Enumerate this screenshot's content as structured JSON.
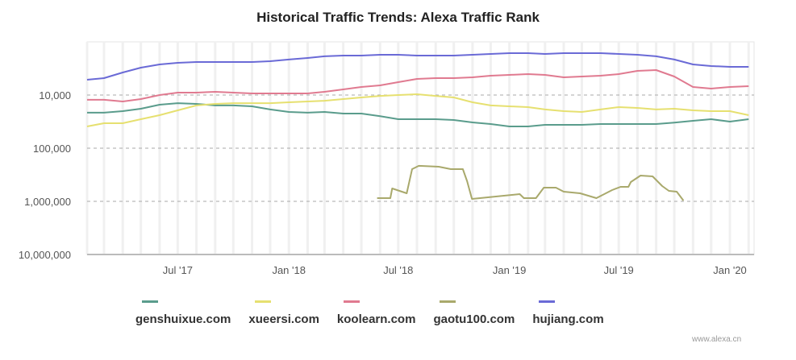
{
  "chart_data": {
    "type": "line",
    "title": "Historical Traffic Trends: Alexa Traffic Rank",
    "xlabel": "",
    "ylabel": "",
    "y_scale": "log",
    "y_reversed": true,
    "ylim": [
      1000,
      10000000
    ],
    "xlim": [
      "2017-02-01",
      "2020-02-10"
    ],
    "grid": "horizontal dashed, vertical faint",
    "legend_position": "bottom",
    "y_ticks": [
      "10,000",
      "100,000",
      "1,000,000",
      "10,000,000"
    ],
    "y_tick_values": [
      10000,
      100000,
      1000000,
      10000000
    ],
    "x_ticks": [
      "Jul '17",
      "Jan '18",
      "Jul '18",
      "Jan '19",
      "Jul '19",
      "Jan '20"
    ],
    "x_tick_dates": [
      "2017-07-01",
      "2018-01-01",
      "2018-07-01",
      "2019-01-01",
      "2019-07-01",
      "2020-01-01"
    ],
    "dates": [
      "2017-02-01",
      "2017-03-01",
      "2017-04-01",
      "2017-05-01",
      "2017-06-01",
      "2017-07-01",
      "2017-08-01",
      "2017-09-01",
      "2017-10-01",
      "2017-11-01",
      "2017-12-01",
      "2018-01-01",
      "2018-02-01",
      "2018-03-01",
      "2018-04-01",
      "2018-05-01",
      "2018-06-01",
      "2018-07-01",
      "2018-08-01",
      "2018-09-01",
      "2018-10-01",
      "2018-11-01",
      "2018-12-01",
      "2019-01-01",
      "2019-02-01",
      "2019-03-01",
      "2019-04-01",
      "2019-05-01",
      "2019-06-01",
      "2019-07-01",
      "2019-08-01",
      "2019-09-01",
      "2019-10-01",
      "2019-11-01",
      "2019-12-01",
      "2020-01-01",
      "2020-02-01"
    ],
    "series": [
      {
        "name": "genshuixue.com",
        "color": "#5a9c8c",
        "values": [
          21500,
          21500,
          20100,
          18100,
          15200,
          14200,
          14700,
          15700,
          15700,
          16300,
          18700,
          20800,
          21500,
          20800,
          22300,
          22300,
          25000,
          28500,
          28500,
          28500,
          29500,
          32700,
          35100,
          39000,
          39000,
          36400,
          36400,
          36400,
          35100,
          35100,
          35100,
          35100,
          33000,
          30500,
          28500,
          31600,
          28500
        ]
      },
      {
        "name": "xueersi.com",
        "color": "#e6e070",
        "values": [
          39000,
          33900,
          33900,
          28500,
          23900,
          19400,
          15700,
          14700,
          14200,
          14200,
          14200,
          13700,
          13200,
          12800,
          11900,
          11100,
          10400,
          10000,
          9660,
          10400,
          11100,
          13700,
          15700,
          16300,
          16900,
          18700,
          20100,
          20800,
          18700,
          16900,
          17500,
          18700,
          18100,
          19400,
          20100,
          20100,
          23900
        ]
      },
      {
        "name": "koolearn.com",
        "color": "#e07a90",
        "values": [
          12300,
          12300,
          13200,
          11900,
          10000,
          9010,
          9010,
          8700,
          9010,
          9330,
          9330,
          9330,
          9330,
          8700,
          7840,
          7050,
          6580,
          5730,
          4980,
          4810,
          4810,
          4640,
          4330,
          4180,
          4040,
          4180,
          4640,
          4490,
          4330,
          4040,
          3510,
          3390,
          4490,
          7050,
          7570,
          7050,
          6810
        ]
      },
      {
        "name": "hujiang.com",
        "color": "#6a6ad6",
        "values": [
          5150,
          4810,
          3770,
          3050,
          2660,
          2480,
          2390,
          2390,
          2390,
          2390,
          2310,
          2150,
          2010,
          1870,
          1810,
          1810,
          1750,
          1750,
          1810,
          1810,
          1810,
          1750,
          1690,
          1630,
          1630,
          1690,
          1630,
          1630,
          1630,
          1690,
          1750,
          1870,
          2150,
          2660,
          2850,
          2950,
          2950
        ]
      }
    ],
    "gaotu100": {
      "name": "gaotu100.com",
      "color": "#a9a96c",
      "x": [
        "2018-05-27",
        "2018-06-18",
        "2018-06-21",
        "2018-07-15",
        "2018-07-24",
        "2018-08-04",
        "2018-09-06",
        "2018-09-26",
        "2018-10-16",
        "2018-10-23",
        "2018-10-31",
        "2019-01-18",
        "2019-01-25",
        "2019-02-14",
        "2019-02-27",
        "2019-03-19",
        "2019-04-01",
        "2019-04-28",
        "2019-05-25",
        "2019-06-20",
        "2019-07-04",
        "2019-07-17",
        "2019-07-21",
        "2019-08-06",
        "2019-08-26",
        "2019-09-11",
        "2019-09-22",
        "2019-10-05",
        "2019-10-16"
      ],
      "values": [
        869000,
        869000,
        573000,
        705000,
        248000,
        215000,
        223000,
        248000,
        248000,
        418000,
        901000,
        731000,
        869000,
        869000,
        553000,
        553000,
        658000,
        705000,
        869000,
        614000,
        533000,
        533000,
        433000,
        327000,
        339000,
        515000,
        636000,
        658000,
        966000
      ]
    }
  },
  "legend": [
    "genshuixue.com",
    "xueersi.com",
    "koolearn.com",
    "gaotu100.com",
    "hujiang.com"
  ],
  "watermark": "www.alexa.cn"
}
